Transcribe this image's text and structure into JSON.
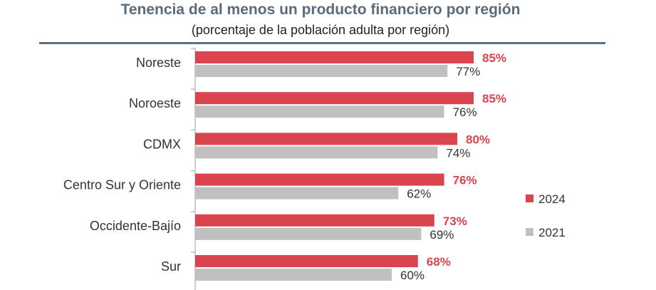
{
  "title": "Tenencia de al menos un producto financiero por región",
  "subtitle": "(porcentaje de la población adulta por región)",
  "chart_data": {
    "type": "bar",
    "orientation": "horizontal",
    "categories": [
      "Noreste",
      "Noroeste",
      "CDMX",
      "Centro Sur y Oriente",
      "Occidente-Bajío",
      "Sur"
    ],
    "series": [
      {
        "name": "2024",
        "values": [
          85,
          85,
          80,
          76,
          73,
          68
        ],
        "labels": [
          "85%",
          "85%",
          "80%",
          "76%",
          "73%",
          "68%"
        ],
        "color": "#d9444f"
      },
      {
        "name": "2021",
        "values": [
          77,
          76,
          74,
          62,
          69,
          60
        ],
        "labels": [
          "77%",
          "76%",
          "74%",
          "62%",
          "69%",
          "60%"
        ],
        "color": "#c0c0c0"
      }
    ],
    "xlim": [
      0,
      100
    ],
    "legend": "right",
    "grid": false
  }
}
